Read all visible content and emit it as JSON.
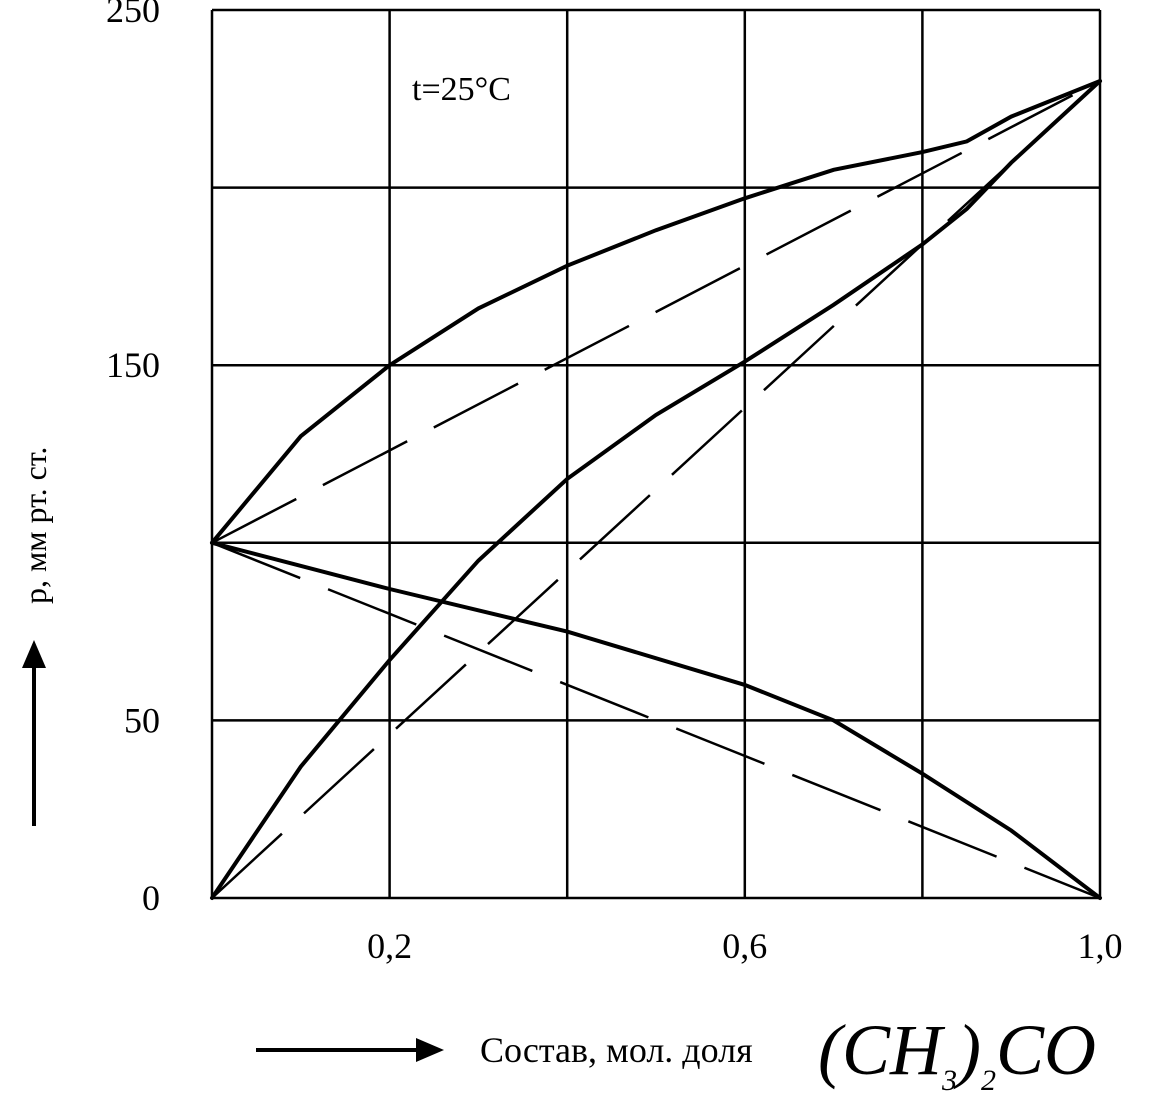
{
  "chart_data": {
    "type": "line",
    "annotation": "t=25°C",
    "ylabel": "p, мм рт. ст.",
    "xlabel": "Состав, мол. доля",
    "xlabel_formula": {
      "open": "(CH",
      "sub1": "3",
      "close": ")",
      "sub2": "2",
      "tail": "CO"
    },
    "xlim": [
      0,
      1.0
    ],
    "ylim": [
      0,
      250
    ],
    "x_ticks": [
      {
        "value": 0.2,
        "label": "0,2"
      },
      {
        "value": 0.6,
        "label": "0,6"
      },
      {
        "value": 1.0,
        "label": "1,0"
      }
    ],
    "y_ticks": [
      {
        "value": 0,
        "label": "0"
      },
      {
        "value": 50,
        "label": "50"
      },
      {
        "value": 150,
        "label": "150"
      },
      {
        "value": 250,
        "label": "250"
      }
    ],
    "grid_x": [
      0,
      0.2,
      0.4,
      0.6,
      0.8,
      1.0
    ],
    "grid_y": [
      0,
      50,
      100,
      150,
      200,
      250
    ],
    "grid": true,
    "series": [
      {
        "style": "solid",
        "points": [
          [
            0,
            100
          ],
          [
            0.1,
            130
          ],
          [
            0.2,
            150
          ],
          [
            0.3,
            166
          ],
          [
            0.4,
            178
          ],
          [
            0.5,
            188
          ],
          [
            0.6,
            197
          ],
          [
            0.7,
            205
          ],
          [
            0.8,
            210
          ],
          [
            0.85,
            213
          ],
          [
            0.9,
            220
          ],
          [
            1.0,
            230
          ]
        ]
      },
      {
        "style": "solid",
        "points": [
          [
            0,
            0
          ],
          [
            0.1,
            37
          ],
          [
            0.2,
            67
          ],
          [
            0.3,
            95
          ],
          [
            0.4,
            118
          ],
          [
            0.5,
            136
          ],
          [
            0.6,
            151
          ],
          [
            0.7,
            167
          ],
          [
            0.8,
            184
          ],
          [
            0.85,
            194
          ],
          [
            0.9,
            207
          ],
          [
            1.0,
            230
          ]
        ]
      },
      {
        "style": "solid",
        "points": [
          [
            0,
            100
          ],
          [
            0.2,
            87
          ],
          [
            0.4,
            75
          ],
          [
            0.6,
            60
          ],
          [
            0.7,
            50
          ],
          [
            0.8,
            35
          ],
          [
            0.9,
            19
          ],
          [
            1.0,
            0
          ]
        ]
      },
      {
        "style": "dashed",
        "points": [
          [
            0,
            100
          ],
          [
            1.0,
            230
          ]
        ]
      },
      {
        "style": "dashed",
        "points": [
          [
            0,
            0
          ],
          [
            1.0,
            230
          ]
        ]
      },
      {
        "style": "dashed",
        "points": [
          [
            0,
            100
          ],
          [
            1.0,
            0
          ]
        ]
      }
    ]
  }
}
